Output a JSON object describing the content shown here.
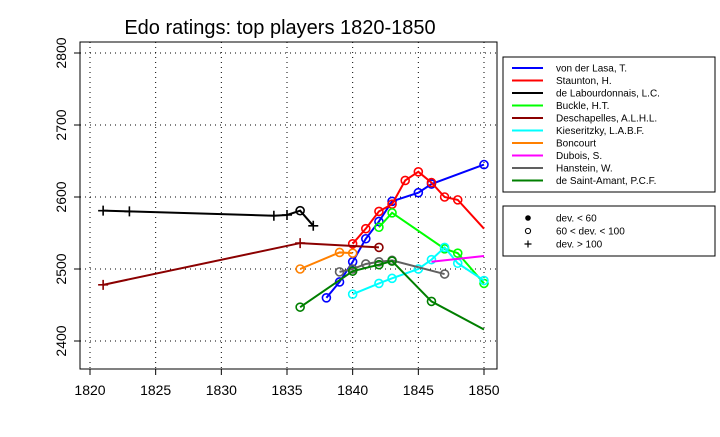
{
  "chart_data": {
    "type": "line",
    "title": "Edo ratings: top players 1820-1850",
    "xlabel": "",
    "ylabel": "",
    "xlim": [
      1819,
      1851
    ],
    "ylim": [
      2355,
      2820
    ],
    "x_ticks": [
      1820,
      1825,
      1830,
      1835,
      1840,
      1845,
      1850
    ],
    "y_ticks": [
      2400,
      2500,
      2600,
      2700,
      2800
    ],
    "grid": true,
    "legend_position": "right",
    "series": [
      {
        "name": "von der Lasa, T.",
        "color": "#0000ff",
        "points": [
          [
            1838,
            2460,
            "c"
          ],
          [
            1839,
            2482,
            "c"
          ],
          [
            1840,
            2510,
            "c"
          ],
          [
            1841,
            2542,
            "c"
          ],
          [
            1842,
            2566,
            "c"
          ],
          [
            1843,
            2594,
            "c"
          ],
          [
            1845,
            2606,
            "c"
          ],
          [
            1846,
            2618,
            "c"
          ],
          [
            1850,
            2645,
            "c"
          ]
        ]
      },
      {
        "name": "Staunton, H.",
        "color": "#ff0000",
        "points": [
          [
            1840,
            2535,
            "c"
          ],
          [
            1841,
            2556,
            "c"
          ],
          [
            1842,
            2580,
            "c"
          ],
          [
            1843,
            2590,
            "c"
          ],
          [
            1844,
            2623,
            "c"
          ],
          [
            1845,
            2635,
            "c"
          ],
          [
            1846,
            2620,
            "c"
          ],
          [
            1847,
            2600,
            "c"
          ],
          [
            1848,
            2596,
            "c"
          ],
          [
            1850,
            2556,
            "n"
          ]
        ]
      },
      {
        "name": "de Labourdonnais, L.C.",
        "color": "#000000",
        "points": [
          [
            1821,
            2581,
            "p"
          ],
          [
            1823,
            2580,
            "p"
          ],
          [
            1834,
            2574,
            "p"
          ],
          [
            1835,
            2575,
            "p"
          ],
          [
            1836,
            2581,
            "c"
          ],
          [
            1837,
            2560,
            "p"
          ]
        ]
      },
      {
        "name": "Buckle, H.T.",
        "color": "#00ff00",
        "points": [
          [
            1842,
            2558,
            "c"
          ],
          [
            1843,
            2578,
            "c"
          ],
          [
            1847,
            2528,
            "c"
          ],
          [
            1848,
            2522,
            "c"
          ],
          [
            1850,
            2480,
            "c"
          ]
        ]
      },
      {
        "name": "Deschapelles, A.L.H.L.",
        "color": "#8b0000",
        "points": [
          [
            1821,
            2478,
            "p"
          ],
          [
            1836,
            2536,
            "p"
          ],
          [
            1842,
            2530,
            "c"
          ]
        ]
      },
      {
        "name": "Kieseritzky, L.A.B.F.",
        "color": "#00ffff",
        "points": [
          [
            1840,
            2465,
            "c"
          ],
          [
            1842,
            2480,
            "c"
          ],
          [
            1843,
            2487,
            "c"
          ],
          [
            1845,
            2500,
            "c"
          ],
          [
            1846,
            2513,
            "c"
          ],
          [
            1847,
            2530,
            "c"
          ],
          [
            1848,
            2508,
            "c"
          ],
          [
            1850,
            2484,
            "c"
          ]
        ]
      },
      {
        "name": "Boncourt",
        "color": "#ff8000",
        "points": [
          [
            1836,
            2500,
            "c"
          ],
          [
            1839,
            2523,
            "c"
          ],
          [
            1840,
            2522,
            "c"
          ]
        ]
      },
      {
        "name": "Dubois, S.",
        "color": "#ff00ff",
        "points": [
          [
            1846,
            2510,
            "n"
          ],
          [
            1850,
            2518,
            "n"
          ]
        ]
      },
      {
        "name": "Hanstein, W.",
        "color": "#606060",
        "points": [
          [
            1839,
            2496,
            "c"
          ],
          [
            1840,
            2500,
            "c"
          ],
          [
            1841,
            2507,
            "c"
          ],
          [
            1842,
            2510,
            "c"
          ],
          [
            1843,
            2512,
            "c"
          ],
          [
            1847,
            2493,
            "c"
          ]
        ]
      },
      {
        "name": "de Saint-Amant, P.C.F.",
        "color": "#007f00",
        "points": [
          [
            1836,
            2447,
            "c"
          ],
          [
            1840,
            2497,
            "c"
          ],
          [
            1842,
            2506,
            "c"
          ],
          [
            1843,
            2511,
            "c"
          ],
          [
            1846,
            2455,
            "c"
          ],
          [
            1850,
            2416,
            "n"
          ]
        ]
      }
    ],
    "marker_legend": [
      {
        "symbol": "filled-dot",
        "label": "dev. < 60"
      },
      {
        "symbol": "open-circle",
        "label": "60 < dev. < 100"
      },
      {
        "symbol": "plus",
        "label": "dev. > 100"
      }
    ]
  }
}
